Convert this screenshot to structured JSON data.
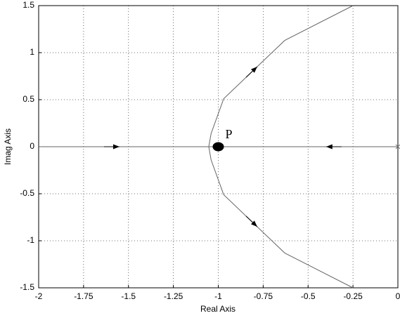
{
  "chart_data": {
    "type": "line",
    "xlabel": "Real Axis",
    "ylabel": "Imag Axis",
    "xlim": [
      -2,
      0
    ],
    "ylim": [
      -1.5,
      1.5
    ],
    "xticks": [
      -2,
      -1.75,
      -1.5,
      -1.25,
      -1,
      -0.75,
      -0.5,
      -0.25,
      0
    ],
    "yticks": [
      -1.5,
      -1,
      -0.5,
      0,
      0.5,
      1,
      1.5
    ],
    "grid": true,
    "series": [
      {
        "color": "#666666",
        "x": [
          -0.25,
          -0.63,
          -0.97,
          -1.04,
          -1.053,
          -1.04,
          -0.97,
          -0.63,
          -0.25
        ],
        "y": [
          1.5,
          1.13,
          0.51,
          0.14,
          0,
          -0.14,
          -0.51,
          -1.13,
          -1.5
        ]
      },
      {
        "color": "#666666",
        "x": [
          -2,
          0
        ],
        "y": [
          0,
          0
        ]
      }
    ],
    "poles": [
      {
        "x": 0,
        "y": 0
      }
    ],
    "point": {
      "label": "P",
      "x": -1,
      "y": 0
    }
  }
}
